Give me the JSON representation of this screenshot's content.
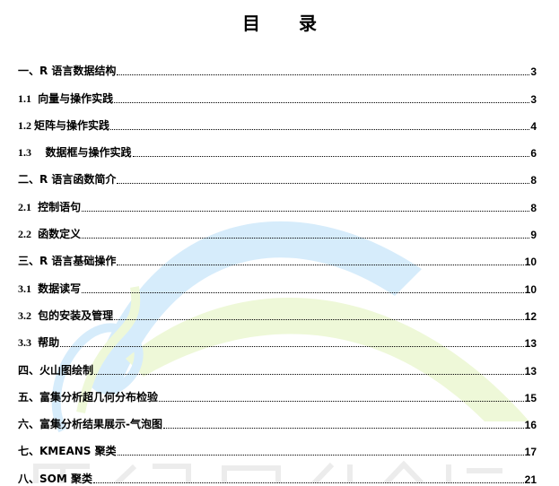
{
  "title": "目 录",
  "entries": [
    {
      "num": "",
      "label": "一、R 语言数据结构",
      "page": "3"
    },
    {
      "num": "1.1",
      "label": " 向量与操作实践",
      "page": "3"
    },
    {
      "num": "1.2",
      "label": "矩阵与操作实践",
      "page": "4"
    },
    {
      "num": "1.3",
      "label": "   数据框与操作实践",
      "page": "6"
    },
    {
      "num": "",
      "label": "二、R 语言函数简介",
      "page": "8"
    },
    {
      "num": "2.1",
      "label": " 控制语句",
      "page": "8"
    },
    {
      "num": "2.2",
      "label": " 函数定义",
      "page": "9"
    },
    {
      "num": "",
      "label": "三、R 语言基础操作",
      "page": "10"
    },
    {
      "num": "3.1",
      "label": " 数据读写",
      "page": "10"
    },
    {
      "num": "3.2",
      "label": " 包的安装及管理",
      "page": "12"
    },
    {
      "num": "3.3",
      "label": " 帮助",
      "page": "13"
    },
    {
      "num": "",
      "label": "四、火山图绘制",
      "page": "13"
    },
    {
      "num": "",
      "label": "五、富集分析超几何分布检验",
      "page": "15"
    },
    {
      "num": "",
      "label": "六、富集分析结果展示-气泡图",
      "page": "16"
    },
    {
      "num": "",
      "label": "七、KMEANS 聚类",
      "page": "17"
    },
    {
      "num": "",
      "label": "八、SOM 聚类",
      "page": "21"
    }
  ],
  "watermark_colors": {
    "blue": "#d6ecfb",
    "green": "#eef8d8",
    "gray": "#eeeeee"
  }
}
